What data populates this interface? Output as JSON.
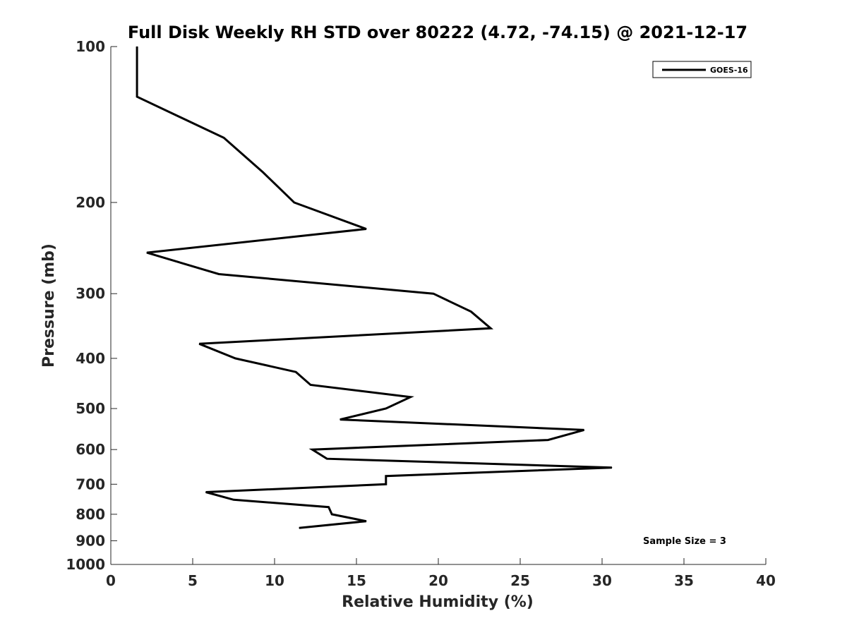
{
  "chart_data": {
    "type": "line",
    "title": "Full Disk Weekly RH STD over 80222 (4.72, -74.15) @ 2021-12-17",
    "xlabel": "Relative Humidity (%)",
    "ylabel": "Pressure (mb)",
    "xlim": [
      0,
      40
    ],
    "ylim": [
      100,
      1000
    ],
    "yscale": "log",
    "yaxis_inverted": true,
    "x_ticks": [
      0,
      5,
      10,
      15,
      20,
      25,
      30,
      35,
      40
    ],
    "x_tick_labels": [
      "0",
      "5",
      "10",
      "15",
      "20",
      "25",
      "30",
      "35",
      "40"
    ],
    "y_ticks": [
      100,
      200,
      300,
      400,
      500,
      600,
      700,
      800,
      900,
      1000
    ],
    "y_tick_labels": [
      "100",
      "200",
      "300",
      "400",
      "500",
      "600",
      "700",
      "800",
      "900",
      "1000"
    ],
    "grid": false,
    "legend_position": "top-right",
    "series": [
      {
        "name": "GOES-16",
        "color": "#000000",
        "points": [
          {
            "x": 1.6,
            "p": 100
          },
          {
            "x": 1.6,
            "p": 125
          },
          {
            "x": 6.9,
            "p": 150
          },
          {
            "x": 9.3,
            "p": 175
          },
          {
            "x": 11.2,
            "p": 200
          },
          {
            "x": 15.6,
            "p": 225
          },
          {
            "x": 2.2,
            "p": 250
          },
          {
            "x": 6.6,
            "p": 275
          },
          {
            "x": 19.7,
            "p": 300
          },
          {
            "x": 22.0,
            "p": 325
          },
          {
            "x": 23.2,
            "p": 350
          },
          {
            "x": 5.4,
            "p": 375
          },
          {
            "x": 7.6,
            "p": 400
          },
          {
            "x": 11.3,
            "p": 425
          },
          {
            "x": 12.2,
            "p": 450
          },
          {
            "x": 18.3,
            "p": 475
          },
          {
            "x": 16.8,
            "p": 500
          },
          {
            "x": 14.0,
            "p": 525
          },
          {
            "x": 28.9,
            "p": 550
          },
          {
            "x": 26.7,
            "p": 575
          },
          {
            "x": 12.3,
            "p": 600
          },
          {
            "x": 13.2,
            "p": 625
          },
          {
            "x": 30.6,
            "p": 650
          },
          {
            "x": 16.8,
            "p": 675
          },
          {
            "x": 16.8,
            "p": 700
          },
          {
            "x": 5.8,
            "p": 725
          },
          {
            "x": 7.5,
            "p": 750
          },
          {
            "x": 13.3,
            "p": 775
          },
          {
            "x": 13.5,
            "p": 800
          },
          {
            "x": 15.6,
            "p": 825
          },
          {
            "x": 11.5,
            "p": 850
          }
        ]
      }
    ],
    "annotations": [
      {
        "text": "Sample Size = 3"
      }
    ]
  }
}
